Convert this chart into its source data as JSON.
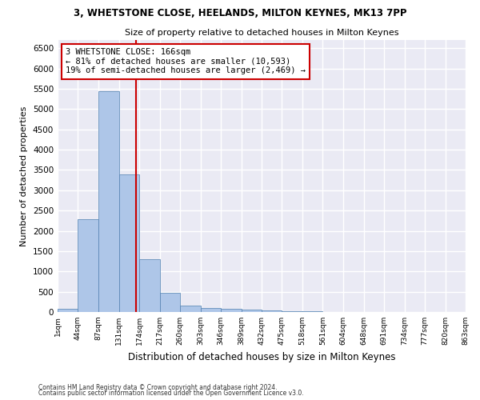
{
  "title1": "3, WHETSTONE CLOSE, HEELANDS, MILTON KEYNES, MK13 7PP",
  "title2": "Size of property relative to detached houses in Milton Keynes",
  "xlabel": "Distribution of detached houses by size in Milton Keynes",
  "ylabel": "Number of detached properties",
  "footnote1": "Contains HM Land Registry data © Crown copyright and database right 2024.",
  "footnote2": "Contains public sector information licensed under the Open Government Licence v3.0.",
  "bar_color": "#aec6e8",
  "bar_edge_color": "#5080b0",
  "bg_color": "#eaeaf4",
  "grid_color": "#ffffff",
  "annotation_line1": "3 WHETSTONE CLOSE: 166sqm",
  "annotation_line2": "← 81% of detached houses are smaller (10,593)",
  "annotation_line3": "19% of semi-detached houses are larger (2,469) →",
  "annotation_box_color": "#ffffff",
  "annotation_border_color": "#cc0000",
  "property_line_color": "#cc0000",
  "property_line_x": 166,
  "bin_edges": [
    1,
    44,
    87,
    131,
    174,
    217,
    260,
    303,
    346,
    389,
    432,
    475,
    518,
    561,
    604,
    648,
    691,
    734,
    777,
    820,
    863
  ],
  "bar_heights": [
    70,
    2280,
    5430,
    3390,
    1310,
    480,
    160,
    90,
    70,
    50,
    35,
    20,
    10,
    5,
    3,
    2,
    1,
    1,
    0,
    0
  ],
  "ylim": [
    0,
    6700
  ],
  "yticks": [
    0,
    500,
    1000,
    1500,
    2000,
    2500,
    3000,
    3500,
    4000,
    4500,
    5000,
    5500,
    6000,
    6500
  ]
}
